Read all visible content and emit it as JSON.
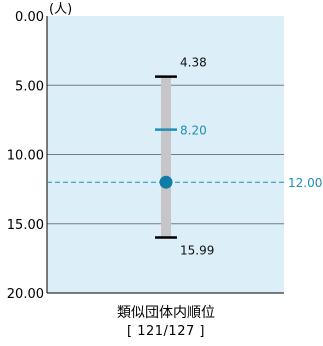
{
  "chart_data": {
    "type": "range",
    "unit_label": "(人)",
    "y_ticks": [
      "0.00",
      "5.00",
      "10.00",
      "15.00",
      "20.00"
    ],
    "ylim": [
      0,
      20
    ],
    "inverted_y": true,
    "range": {
      "top": 4.38,
      "bottom": 15.99,
      "top_label": "4.38",
      "bottom_label": "15.99"
    },
    "marker_value": 8.2,
    "marker_label": "8.20",
    "point_value": 12.0,
    "reference_value": 12.0,
    "reference_label": "12.00",
    "xlabel": "類似団体内順位",
    "rank_text": "[ 121/127 ]",
    "colors": {
      "plot_bg": "#dceef8",
      "grid": "#7a7a7a",
      "bar": "#c6c6c6",
      "accent": "#1f8fb6",
      "point": "#0f7da6",
      "whisker": "#000000"
    }
  }
}
